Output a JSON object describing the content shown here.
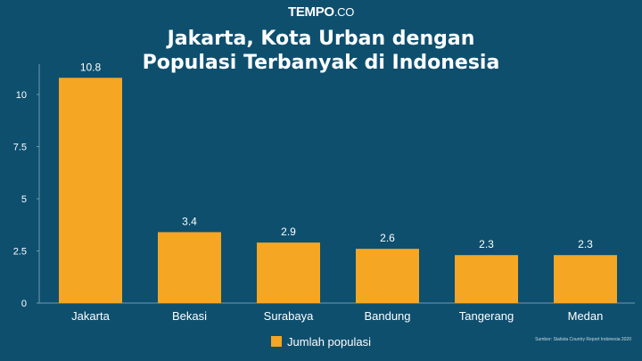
{
  "brand": {
    "name": "TEMPO",
    "suffix": ".CO"
  },
  "title_line1": "Jakarta, Kota Urban dengan",
  "title_line2": "Populasi Terbanyak di Indonesia",
  "legend_label": "Jumlah populasi",
  "source": "Sumber: Statista Country Report Indonesia 2020",
  "colors": {
    "background": "#0e4f6e",
    "bar": "#f5a623",
    "text": "#ffffff"
  },
  "chart_data": {
    "type": "bar",
    "title": "Jakarta, Kota Urban dengan Populasi Terbanyak di Indonesia",
    "categories": [
      "Jakarta",
      "Bekasi",
      "Surabaya",
      "Bandung",
      "Tangerang",
      "Medan"
    ],
    "series": [
      {
        "name": "Jumlah populasi",
        "values": [
          10.8,
          3.4,
          2.9,
          2.6,
          2.3,
          2.3
        ]
      }
    ],
    "data_labels": [
      "10.8",
      "3.4",
      "2.9",
      "2.6",
      "2.3",
      "2.3"
    ],
    "y_ticks": [
      0,
      2.5,
      5,
      7.5,
      10
    ],
    "y_tick_labels": [
      "0",
      "2.5",
      "5",
      "7.5",
      "10"
    ],
    "ylim": [
      0,
      11.5
    ],
    "xlabel": "",
    "ylabel": "",
    "grid": false,
    "legend_position": "bottom"
  }
}
